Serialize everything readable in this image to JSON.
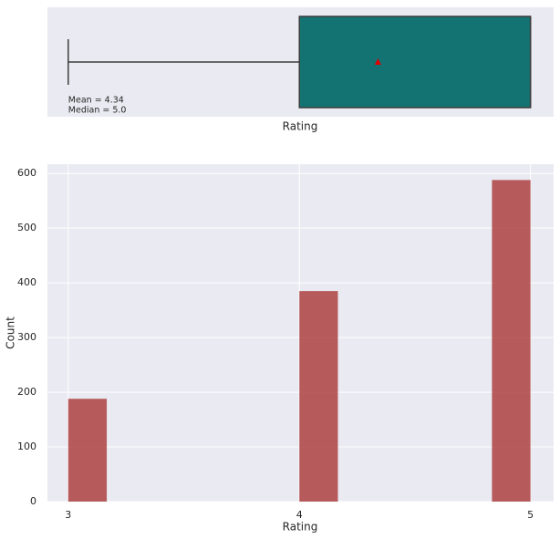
{
  "chart_data": [
    {
      "type": "box",
      "xlabel": "Rating",
      "xlim": [
        2.91,
        5.1
      ],
      "stats": {
        "whislo": 3,
        "q1": 4,
        "med": 5,
        "q3": 5,
        "whishi": 5,
        "mean": 4.34
      },
      "color": "#137373",
      "mean_color": "#e00000",
      "annotations": [
        "Mean = 4.34",
        "Median = 5.0"
      ]
    },
    {
      "type": "histogram",
      "xlabel": "Rating",
      "ylabel": "Count",
      "bins": [
        3,
        3.1667,
        3.3333,
        3.5,
        3.6667,
        3.8333,
        4,
        4.1667,
        4.3333,
        4.5,
        4.6667,
        4.8333,
        5
      ],
      "counts": [
        188,
        0,
        0,
        0,
        0,
        0,
        385,
        0,
        0,
        0,
        0,
        588
      ],
      "color": "#b04a4a",
      "xlim": [
        2.91,
        5.1
      ],
      "ylim": [
        0,
        617
      ],
      "xticks": [
        3,
        4,
        5
      ],
      "yticks": [
        0,
        100,
        200,
        300,
        400,
        500,
        600
      ],
      "grid": true
    }
  ]
}
